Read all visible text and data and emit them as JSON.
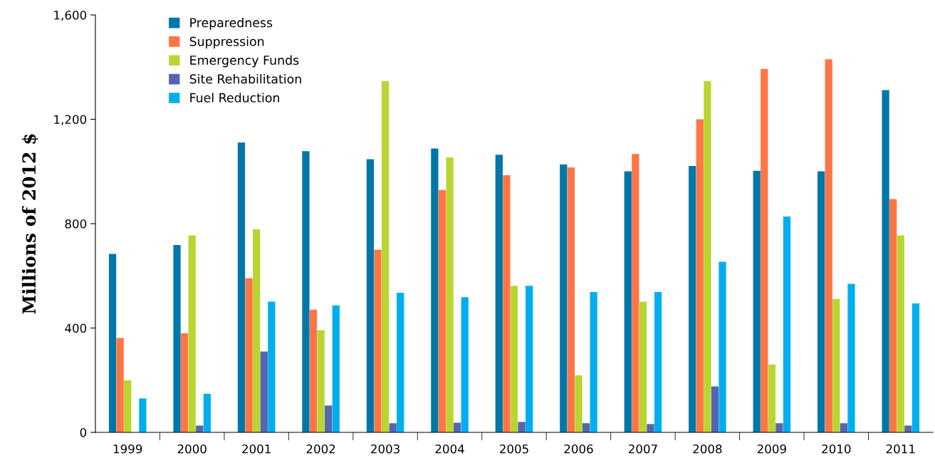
{
  "chart_data": {
    "type": "bar",
    "ylabel": "Millions of 2012 $",
    "categories": [
      "1999",
      "2000",
      "2001",
      "2002",
      "2003",
      "2004",
      "2005",
      "2006",
      "2007",
      "2008",
      "2009",
      "2010",
      "2011"
    ],
    "series": [
      {
        "name": "Preparedness",
        "color": "#0077a8",
        "values": [
          684,
          718,
          1111,
          1078,
          1047,
          1088,
          1064,
          1027,
          1001,
          1021,
          1003,
          1001,
          1312
        ]
      },
      {
        "name": "Suppression",
        "color": "#ff7545",
        "values": [
          362,
          380,
          591,
          470,
          700,
          929,
          986,
          1016,
          1067,
          1200,
          1393,
          1430,
          894
        ]
      },
      {
        "name": "Emergency Funds",
        "color": "#bad531",
        "values": [
          200,
          755,
          779,
          392,
          1347,
          1054,
          562,
          219,
          501,
          1347,
          260,
          511,
          755
        ]
      },
      {
        "name": "Site Rehabilitation",
        "color": "#5566b0",
        "values": [
          null,
          26,
          310,
          103,
          35,
          37,
          40,
          35,
          32,
          176,
          35,
          35,
          26
        ]
      },
      {
        "name": "Fuel Reduction",
        "color": "#00aeef",
        "values": [
          130,
          148,
          501,
          487,
          535,
          518,
          562,
          538,
          538,
          654,
          827,
          569,
          494
        ]
      }
    ],
    "ylim": [
      0,
      1600
    ],
    "yticks": [
      0,
      {
        "value": 400,
        "label": "400"
      },
      {
        "value": 800,
        "label": "800"
      },
      {
        "value": 1200,
        "label": "1,200"
      },
      {
        "value": 1600,
        "label": "1,600"
      }
    ],
    "grid": false,
    "legend": "top left"
  }
}
